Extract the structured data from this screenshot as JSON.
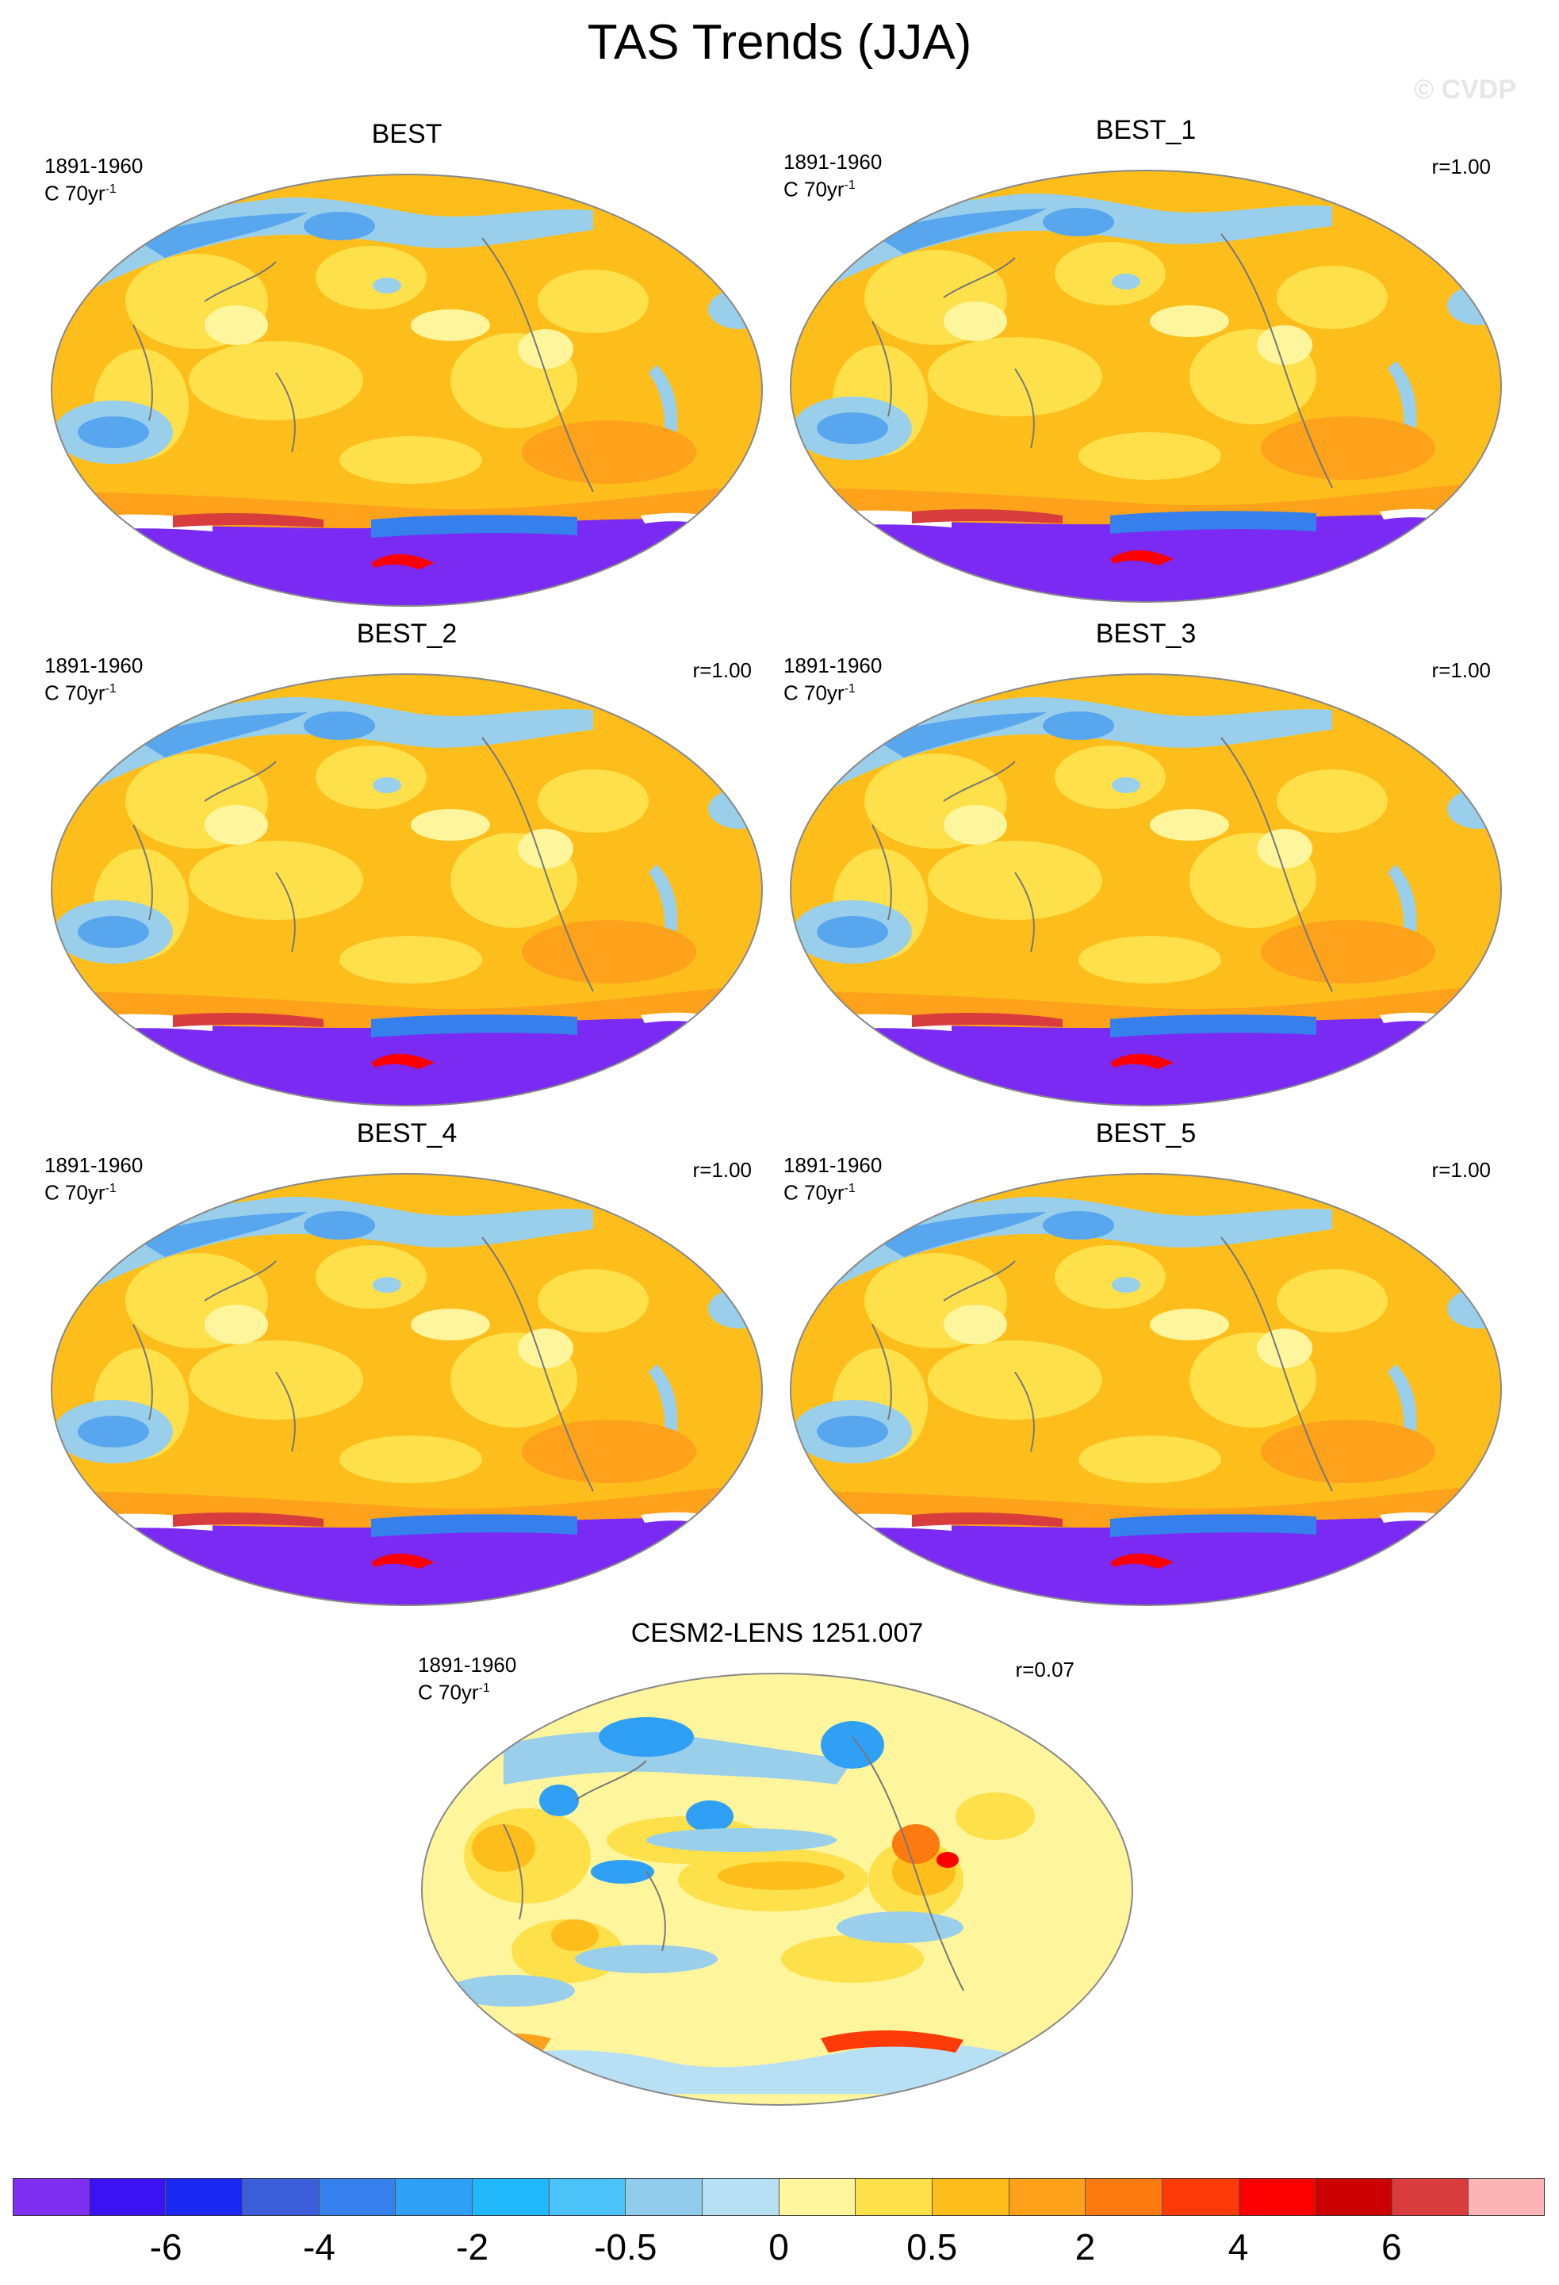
{
  "title": "TAS Trends (JJA)",
  "watermark": "© CVDP",
  "colors": {
    "ocean_warm": "#fdbe1c",
    "land_warm": "#fde04a",
    "cool": "#99cfea",
    "cold": "#58a6ee",
    "antarctic": "#7a2af3",
    "coast": "#777777"
  },
  "panels": [
    {
      "id": "best",
      "title": "BEST",
      "period": "1891-1960",
      "units": "C 70yr",
      "units_exp": "-1",
      "corr": ""
    },
    {
      "id": "best1",
      "title": "BEST_1",
      "period": "1891-1960",
      "units": "C 70yr",
      "units_exp": "-1",
      "corr": "r=1.00"
    },
    {
      "id": "best2",
      "title": "BEST_2",
      "period": "1891-1960",
      "units": "C 70yr",
      "units_exp": "-1",
      "corr": "r=1.00"
    },
    {
      "id": "best3",
      "title": "BEST_3",
      "period": "1891-1960",
      "units": "C 70yr",
      "units_exp": "-1",
      "corr": "r=1.00"
    },
    {
      "id": "best4",
      "title": "BEST_4",
      "period": "1891-1960",
      "units": "C 70yr",
      "units_exp": "-1",
      "corr": "r=1.00"
    },
    {
      "id": "best5",
      "title": "BEST_5",
      "period": "1891-1960",
      "units": "C 70yr",
      "units_exp": "-1",
      "corr": "r=1.00"
    },
    {
      "id": "cesm2",
      "title": "CESM2-LENS 1251.007",
      "period": "1891-1960",
      "units": "C 70yr",
      "units_exp": "-1",
      "corr": "r=0.07"
    }
  ],
  "colorbar": {
    "colors": [
      "#7f2ff2",
      "#3b12f2",
      "#1a28f2",
      "#3c5edb",
      "#3580ec",
      "#2fa0f5",
      "#20b8fb",
      "#4cc3f8",
      "#92ccec",
      "#b8e0f4",
      "#fff59c",
      "#fee04a",
      "#fdbe1c",
      "#fda21a",
      "#fd7a10",
      "#fd3a08",
      "#fc0000",
      "#cc0000",
      "#d83c3c",
      "#fdb4b4"
    ],
    "labels": [
      "-6",
      "-4",
      "-2",
      "-0.5",
      "0",
      "0.5",
      "2",
      "4",
      "6"
    ],
    "label_boundaries": [
      2,
      4,
      6,
      8,
      10,
      12,
      14,
      16,
      18
    ]
  }
}
